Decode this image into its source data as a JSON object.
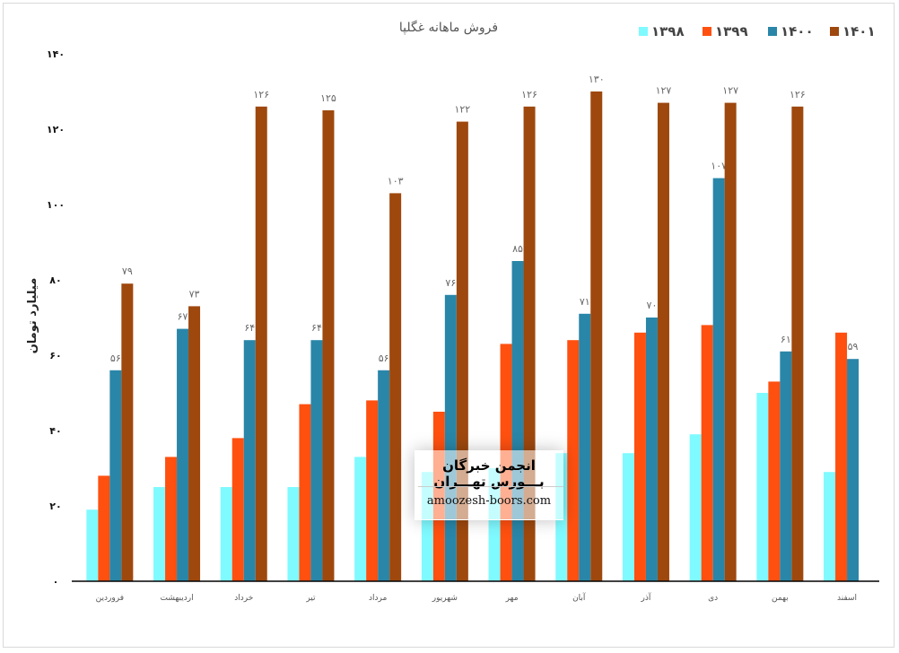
{
  "chart_data": {
    "type": "bar",
    "title": "فروش ماهانه غگلپا",
    "xlabel": "",
    "ylabel": "میلیارد تومان",
    "ylim": [
      0,
      140
    ],
    "yticks": [
      0,
      20,
      40,
      60,
      80,
      100,
      120,
      140
    ],
    "ytick_labels": [
      "۰",
      "۲۰",
      "۴۰",
      "۶۰",
      "۸۰",
      "۱۰۰",
      "۱۲۰",
      "۱۴۰"
    ],
    "grid": false,
    "legend_position": "top-right",
    "categories": [
      "فروردین",
      "اردیبهشت",
      "خرداد",
      "تیر",
      "مرداد",
      "شهریور",
      "مهر",
      "آبان",
      "آذر",
      "دی",
      "بهمن",
      "اسفند"
    ],
    "series": [
      {
        "name": "۱۳۹۸",
        "color": "#7ffaff",
        "values": [
          19,
          25,
          25,
          25,
          33,
          29,
          30,
          34,
          34,
          39,
          50,
          29
        ],
        "show_labels": false
      },
      {
        "name": "۱۳۹۹",
        "color": "#ff5010",
        "values": [
          28,
          33,
          38,
          47,
          48,
          45,
          63,
          64,
          66,
          68,
          53,
          66
        ],
        "show_labels": false
      },
      {
        "name": "۱۴۰۰",
        "color": "#2986a8",
        "values": [
          56,
          67,
          64,
          64,
          56,
          76,
          85,
          71,
          70,
          107,
          61,
          59
        ],
        "show_labels": true
      },
      {
        "name": "۱۴۰۱",
        "color": "#9e480e",
        "values": [
          79,
          73,
          126,
          125,
          103,
          122,
          126,
          130,
          127,
          127,
          126,
          null
        ],
        "show_labels": true
      }
    ]
  },
  "watermark": {
    "title": "انجمن خبرگان بـــورس تهـــران",
    "url": "amoozesh-boors.com"
  }
}
